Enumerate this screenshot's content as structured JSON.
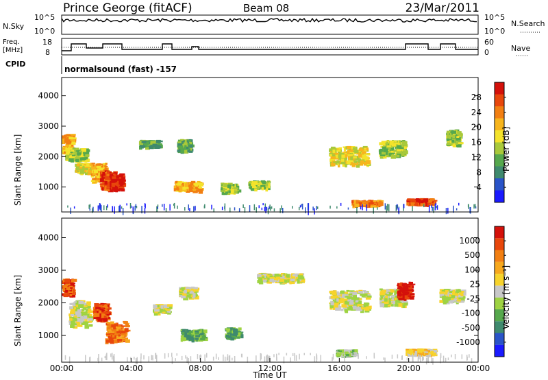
{
  "header": {
    "station": "Prince George (fitACF)",
    "beam": "Beam 08",
    "date": "23/Mar/2011"
  },
  "panels": {
    "nsky": {
      "label": "N.Sky",
      "ticks": [
        "10^5",
        "10^0"
      ],
      "right_label": "N.Search"
    },
    "freq": {
      "label_line1": "Freq.",
      "label_line2": "[MHz]",
      "ticks": [
        "18",
        "8"
      ],
      "right_ticks": [
        "60",
        "0"
      ],
      "right_label": "Nave"
    },
    "cpid": {
      "label": "CPID",
      "value": "normalsound (fast) -157"
    }
  },
  "chart_data": [
    {
      "type": "heatmap",
      "title": "",
      "quantity": "Power",
      "ylabel": "Slant Range [km]",
      "xlabel": "",
      "ylim": [
        180,
        4600
      ],
      "yticks": [
        1000,
        2000,
        3000,
        4000
      ],
      "colorbar": {
        "label": "Power [dB]",
        "ticks": [
          4,
          8,
          12,
          16,
          20,
          24,
          28
        ],
        "colors": [
          "#1a1aff",
          "#2a54c8",
          "#3f8a6e",
          "#56a84d",
          "#a9c93a",
          "#f4e32b",
          "#f7b51d",
          "#f27f12",
          "#e8470c",
          "#d4110a"
        ]
      },
      "blobs": [
        {
          "t": 0.3,
          "r": 2450,
          "dt": 0.6,
          "dr": 300,
          "level": 6
        },
        {
          "t": 0.8,
          "r": 2100,
          "dt": 1.2,
          "dr": 200,
          "level": 4
        },
        {
          "t": 1.2,
          "r": 1650,
          "dt": 0.9,
          "dr": 150,
          "level": 5
        },
        {
          "t": 2.1,
          "r": 1500,
          "dt": 0.9,
          "dr": 300,
          "level": 6
        },
        {
          "t": 2.6,
          "r": 1250,
          "dt": 0.8,
          "dr": 300,
          "level": 8
        },
        {
          "t": 3.1,
          "r": 1200,
          "dt": 0.7,
          "dr": 250,
          "level": 9
        },
        {
          "t": 5.0,
          "r": 2450,
          "dt": 1.1,
          "dr": 100,
          "level": 3
        },
        {
          "t": 7.0,
          "r": 2400,
          "dt": 0.7,
          "dr": 180,
          "level": 3
        },
        {
          "t": 7.2,
          "r": 1050,
          "dt": 1.5,
          "dr": 150,
          "level": 6
        },
        {
          "t": 9.6,
          "r": 1000,
          "dt": 0.9,
          "dr": 150,
          "level": 4
        },
        {
          "t": 11.3,
          "r": 1100,
          "dt": 1.1,
          "dr": 120,
          "level": 4
        },
        {
          "t": 16.5,
          "r": 2050,
          "dt": 2.2,
          "dr": 300,
          "level": 5
        },
        {
          "t": 17.5,
          "r": 500,
          "dt": 1.6,
          "dr": 80,
          "level": 7
        },
        {
          "t": 19.0,
          "r": 2300,
          "dt": 1.5,
          "dr": 250,
          "level": 4
        },
        {
          "t": 20.6,
          "r": 550,
          "dt": 1.5,
          "dr": 90,
          "level": 8
        },
        {
          "t": 22.5,
          "r": 2650,
          "dt": 0.7,
          "dr": 250,
          "level": 4
        }
      ]
    },
    {
      "type": "heatmap",
      "title": "",
      "quantity": "Velocity",
      "ylabel": "Slant Range [km]",
      "xlabel": "Time UT",
      "ylim": [
        180,
        4600
      ],
      "yticks": [
        1000,
        2000,
        3000,
        4000
      ],
      "xticks": [
        "00:00",
        "04:00",
        "08:00",
        "12:00",
        "16:00",
        "20:00",
        "00:00"
      ],
      "colorbar": {
        "label": "Velocity [m s⁻¹]",
        "ticks": [
          "1000",
          "500",
          "100",
          "25",
          "-25",
          "-100",
          "-500",
          "-1000"
        ],
        "colors": [
          "#1a1aff",
          "#2a54c8",
          "#3f8a6e",
          "#56a84d",
          "#9ed342",
          "#c8c8c8",
          "#f7d32b",
          "#f7a81d",
          "#f27f12",
          "#e8470c",
          "#d4110a"
        ]
      },
      "blobs": [
        {
          "t": 0.3,
          "r": 2500,
          "dt": 0.6,
          "dr": 250,
          "level": 9
        },
        {
          "t": 1.0,
          "r": 1700,
          "dt": 1.2,
          "dr": 400,
          "level": 5
        },
        {
          "t": 2.2,
          "r": 1750,
          "dt": 0.8,
          "dr": 250,
          "level": 9
        },
        {
          "t": 3.1,
          "r": 1150,
          "dt": 1.2,
          "dr": 300,
          "level": 8
        },
        {
          "t": 5.7,
          "r": 1850,
          "dt": 0.9,
          "dr": 120,
          "level": 5
        },
        {
          "t": 7.2,
          "r": 2350,
          "dt": 0.9,
          "dr": 150,
          "level": 5
        },
        {
          "t": 7.5,
          "r": 1050,
          "dt": 1.3,
          "dr": 150,
          "level": 3
        },
        {
          "t": 9.8,
          "r": 1100,
          "dt": 0.8,
          "dr": 150,
          "level": 3
        },
        {
          "t": 12.5,
          "r": 2800,
          "dt": 2.5,
          "dr": 120,
          "level": 5
        },
        {
          "t": 16.5,
          "r": 2100,
          "dt": 2.2,
          "dr": 300,
          "level": 5
        },
        {
          "t": 16.3,
          "r": 500,
          "dt": 1.0,
          "dr": 80,
          "level": 4
        },
        {
          "t": 19.0,
          "r": 2200,
          "dt": 1.4,
          "dr": 250,
          "level": 5
        },
        {
          "t": 19.7,
          "r": 2400,
          "dt": 0.8,
          "dr": 250,
          "level": 10
        },
        {
          "t": 20.6,
          "r": 520,
          "dt": 1.6,
          "dr": 80,
          "level": 6
        },
        {
          "t": 22.4,
          "r": 2250,
          "dt": 1.3,
          "dr": 180,
          "level": 5
        }
      ]
    }
  ]
}
